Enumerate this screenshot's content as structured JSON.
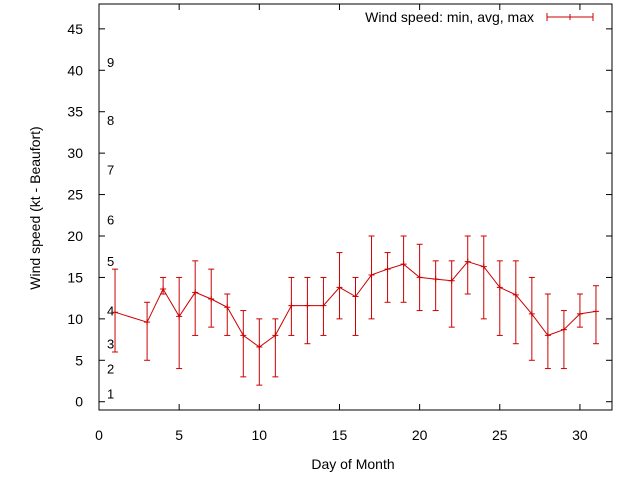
{
  "chart_data": {
    "type": "line",
    "title": "",
    "xlabel": "Day of Month",
    "ylabel": "Wind speed (kt - Beaufort)",
    "xlim": [
      0,
      32
    ],
    "ylim": [
      -1,
      48
    ],
    "x_ticks": [
      0,
      5,
      10,
      15,
      20,
      25,
      30
    ],
    "y_ticks": [
      0,
      5,
      10,
      15,
      20,
      25,
      30,
      35,
      40,
      45
    ],
    "grid": false,
    "legend_position": "top-right",
    "series": [
      {
        "name": "Wind speed: min, avg, max",
        "color": "#cc0000",
        "x": [
          1,
          3,
          4,
          5,
          6,
          7,
          8,
          9,
          10,
          11,
          12,
          13,
          14,
          15,
          16,
          17,
          18,
          19,
          20,
          21,
          22,
          23,
          24,
          25,
          26,
          27,
          28,
          29,
          30,
          31
        ],
        "avg": [
          10.8,
          9.6,
          13.6,
          10.3,
          13.2,
          12.4,
          11.4,
          8,
          6.6,
          8,
          11.6,
          11.6,
          11.6,
          13.8,
          12.7,
          15.3,
          16,
          16.6,
          15,
          14.8,
          14.6,
          16.9,
          16.3,
          13.8,
          12.9,
          10.6,
          8,
          8.7,
          10.6,
          10.9
        ],
        "min": [
          6,
          5,
          13,
          4,
          8,
          9,
          8,
          3,
          2,
          3,
          8,
          7,
          8,
          10,
          8,
          10,
          12,
          12,
          11,
          11,
          9,
          13,
          10,
          8,
          7,
          5,
          4,
          4,
          9,
          7
        ],
        "max": [
          16,
          12,
          15,
          15,
          17,
          16,
          13,
          11,
          10,
          10,
          15,
          15,
          15,
          18,
          15,
          20,
          18,
          20,
          19,
          17,
          17,
          20,
          20,
          17,
          17,
          15,
          13,
          11,
          13,
          14
        ]
      }
    ],
    "beaufort_labels": [
      {
        "text": "1",
        "y": 1
      },
      {
        "text": "2",
        "y": 4
      },
      {
        "text": "3",
        "y": 7
      },
      {
        "text": "4",
        "y": 11
      },
      {
        "text": "5",
        "y": 17
      },
      {
        "text": "6",
        "y": 22
      },
      {
        "text": "7",
        "y": 28
      },
      {
        "text": "8",
        "y": 34
      },
      {
        "text": "9",
        "y": 41
      }
    ]
  }
}
